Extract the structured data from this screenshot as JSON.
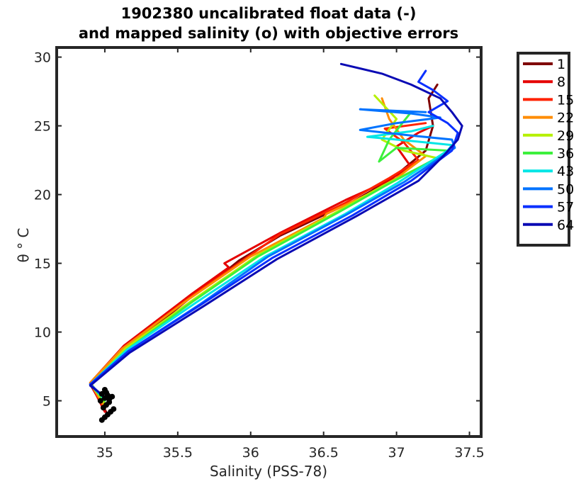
{
  "chart_data": {
    "type": "line",
    "title": [
      "1902380 uncalibrated float data (-)",
      "and mapped salinity (o) with objective errors"
    ],
    "xlabel": "Salinity (PSS-78)",
    "ylabel": "θ ° C",
    "xlim": [
      34.67,
      37.58
    ],
    "ylim": [
      2.4,
      30.7
    ],
    "xticks": [
      35,
      35.5,
      36,
      36.5,
      37,
      37.5
    ],
    "xtick_labels": [
      "35",
      "35.5",
      "36",
      "36.5",
      "37",
      "37.5"
    ],
    "yticks": [
      5,
      10,
      15,
      20,
      25,
      30
    ],
    "ytick_labels": [
      "5",
      "10",
      "15",
      "20",
      "25",
      "30"
    ],
    "grid": false,
    "legend_position": "outside-top-right",
    "series": [
      {
        "name": "1",
        "color": "#7f0000",
        "x": [
          35.02,
          34.9,
          35.15,
          35.6,
          35.85,
          35.92,
          36.2,
          36.7,
          36.95,
          37.2,
          37.25,
          37.22,
          37.28
        ],
        "y": [
          4.0,
          6.2,
          8.8,
          12.6,
          14.6,
          15.2,
          17.0,
          19.5,
          21.0,
          23.2,
          25.0,
          27.0,
          28.0
        ]
      },
      {
        "name": "8",
        "color": "#e50000",
        "x": [
          35.0,
          34.9,
          35.13,
          35.6,
          35.85,
          35.82,
          36.2,
          36.65,
          36.9,
          37.1,
          37.0,
          37.15,
          37.25
        ],
        "y": [
          4.2,
          6.3,
          9.0,
          12.8,
          14.7,
          15.0,
          17.2,
          19.6,
          20.8,
          22.0,
          23.5,
          24.5,
          25.0
        ]
      },
      {
        "name": "15",
        "color": "#ff2200",
        "x": [
          35.0,
          34.91,
          35.14,
          35.58,
          35.85,
          36.2,
          36.65,
          36.95,
          37.15,
          37.05,
          36.92,
          37.2
        ],
        "y": [
          4.4,
          6.2,
          8.9,
          12.5,
          14.5,
          17.1,
          19.4,
          21.2,
          22.5,
          23.8,
          24.8,
          25.2
        ]
      },
      {
        "name": "22",
        "color": "#ff8c00",
        "x": [
          35.0,
          34.9,
          35.12,
          35.55,
          36.0,
          36.5,
          36.52,
          36.8,
          37.0,
          37.2,
          37.05,
          36.95,
          36.9
        ],
        "y": [
          4.5,
          6.3,
          8.8,
          12.2,
          15.5,
          18.3,
          18.6,
          20.0,
          21.2,
          22.8,
          24.0,
          25.5,
          27.0
        ]
      },
      {
        "name": "29",
        "color": "#b5f000",
        "x": [
          35.0,
          34.91,
          35.14,
          35.6,
          36.05,
          36.6,
          36.9,
          37.2,
          37.3,
          37.05,
          36.9,
          37.0,
          36.85
        ],
        "y": [
          4.8,
          6.2,
          8.8,
          12.3,
          15.6,
          18.8,
          20.6,
          22.2,
          22.6,
          23.2,
          24.0,
          25.5,
          27.2
        ]
      },
      {
        "name": "36",
        "color": "#3cf03c",
        "x": [
          35.0,
          34.9,
          35.15,
          35.6,
          36.05,
          36.6,
          36.95,
          37.3,
          37.35,
          37.0,
          36.88,
          36.95,
          37.1
        ],
        "y": [
          5.0,
          6.2,
          8.7,
          12.2,
          15.5,
          18.7,
          20.8,
          22.8,
          23.2,
          23.4,
          22.4,
          24.0,
          26.0
        ]
      },
      {
        "name": "43",
        "color": "#00e6e6",
        "x": [
          35.0,
          34.9,
          35.15,
          35.62,
          36.1,
          36.65,
          37.0,
          37.35,
          37.38,
          37.1,
          36.8,
          37.1,
          37.25
        ],
        "y": [
          5.1,
          6.2,
          8.7,
          12.1,
          15.5,
          18.6,
          20.8,
          23.2,
          23.6,
          23.9,
          24.2,
          24.6,
          25.0
        ]
      },
      {
        "name": "50",
        "color": "#0073ff",
        "x": [
          35.0,
          34.9,
          35.16,
          35.65,
          36.12,
          36.65,
          37.05,
          37.4,
          37.38,
          37.1,
          36.75,
          37.0,
          37.3,
          37.1,
          36.75,
          37.2
        ],
        "y": [
          5.2,
          6.2,
          8.6,
          12.0,
          15.5,
          18.5,
          20.9,
          23.4,
          24.0,
          24.3,
          24.7,
          25.2,
          25.6,
          25.9,
          26.2,
          26.0
        ]
      },
      {
        "name": "57",
        "color": "#0a30ff",
        "x": [
          35.0,
          34.9,
          35.16,
          35.66,
          36.15,
          36.7,
          37.1,
          37.38,
          37.42,
          37.35,
          37.22,
          37.35,
          37.25,
          37.15,
          37.2
        ],
        "y": [
          5.2,
          6.2,
          8.6,
          12.0,
          15.4,
          18.5,
          21.0,
          23.2,
          24.5,
          25.2,
          26.0,
          26.8,
          27.6,
          28.2,
          29.0
        ]
      },
      {
        "name": "64",
        "color": "#0a0ab4",
        "x": [
          35.0,
          34.9,
          35.17,
          35.68,
          36.18,
          36.72,
          37.15,
          37.32,
          37.42,
          37.45,
          37.38,
          37.3,
          37.1,
          36.9,
          36.62
        ],
        "y": [
          5.3,
          6.1,
          8.5,
          11.9,
          15.3,
          18.4,
          21.0,
          22.8,
          24.0,
          25.0,
          26.0,
          27.0,
          28.0,
          28.8,
          29.5
        ]
      }
    ],
    "mapped_points": {
      "color": "#000000",
      "x": [
        34.98,
        35.0,
        35.02,
        35.04,
        35.06,
        34.99,
        35.01,
        35.03,
        34.97,
        35.0,
        35.02,
        34.98,
        35.01,
        35.03,
        35.05,
        35.0
      ],
      "y": [
        3.6,
        3.8,
        4.0,
        4.2,
        4.4,
        4.5,
        4.7,
        4.9,
        5.0,
        5.2,
        5.4,
        5.5,
        5.6,
        5.1,
        5.3,
        5.8
      ]
    }
  }
}
